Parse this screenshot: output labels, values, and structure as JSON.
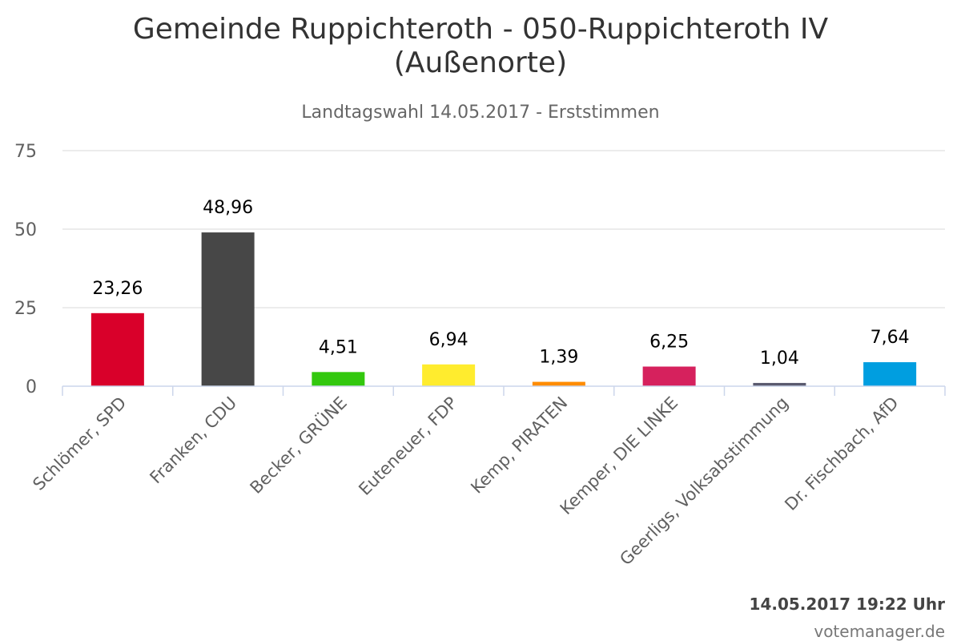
{
  "chart_data": {
    "type": "bar",
    "title": "Gemeinde Ruppichteroth - 050-Ruppichteroth IV",
    "title_line2": "(Außenorte)",
    "subtitle": "Landtagswahl 14.05.2017 - Erststimmen",
    "categories": [
      "Schlömer, SPD",
      "Franken, CDU",
      "Becker, GRÜNE",
      "Euteneuer, FDP",
      "Kemp, PIRATEN",
      "Kemper, DIE LINKE",
      "Geerligs, Volksabstimmung",
      "Dr. Fischbach, AfD"
    ],
    "values": [
      23.26,
      48.96,
      4.51,
      6.94,
      1.39,
      6.25,
      1.04,
      7.64
    ],
    "value_labels": [
      "23,26",
      "48,96",
      "4,51",
      "6,94",
      "1,39",
      "6,25",
      "1,04",
      "7,64"
    ],
    "colors": [
      "#d9002a",
      "#474747",
      "#33c80e",
      "#ffec2e",
      "#ff8c00",
      "#d6215d",
      "#5a5a6e",
      "#009ee0"
    ],
    "yticks": [
      0,
      25,
      50,
      75
    ],
    "ylim": [
      0,
      75
    ],
    "grid": true,
    "legend": "none"
  },
  "footer": {
    "timestamp": "14.05.2017 19:22 Uhr",
    "credit": "votemanager.de"
  }
}
